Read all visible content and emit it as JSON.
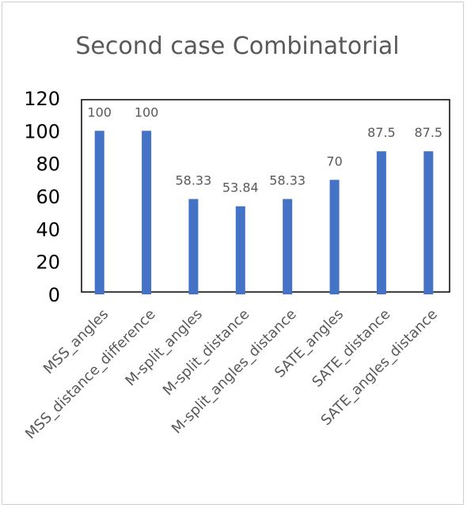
{
  "chart_data": {
    "type": "bar",
    "title": "Second case Combinatorial",
    "xlabel": "",
    "ylabel": "",
    "categories": [
      "MSS_angles",
      "MSS_distance_difference",
      "M-split_angles",
      "M-split_distance",
      "M-split_angles_distance",
      "SATE_angles",
      "SATE_distance",
      "SATE_angles_distance"
    ],
    "values": [
      100,
      100,
      58.33,
      53.84,
      58.33,
      70,
      87.5,
      87.5
    ],
    "data_labels": [
      "100",
      "100",
      "58.33",
      "53.84",
      "58.33",
      "70",
      "87.5",
      "87.5"
    ],
    "ylim": [
      0,
      120
    ],
    "yticks": [
      "0",
      "20",
      "40",
      "60",
      "80",
      "100",
      "120"
    ],
    "grid": false,
    "legend": "none",
    "bar_color": "#4472C4"
  }
}
